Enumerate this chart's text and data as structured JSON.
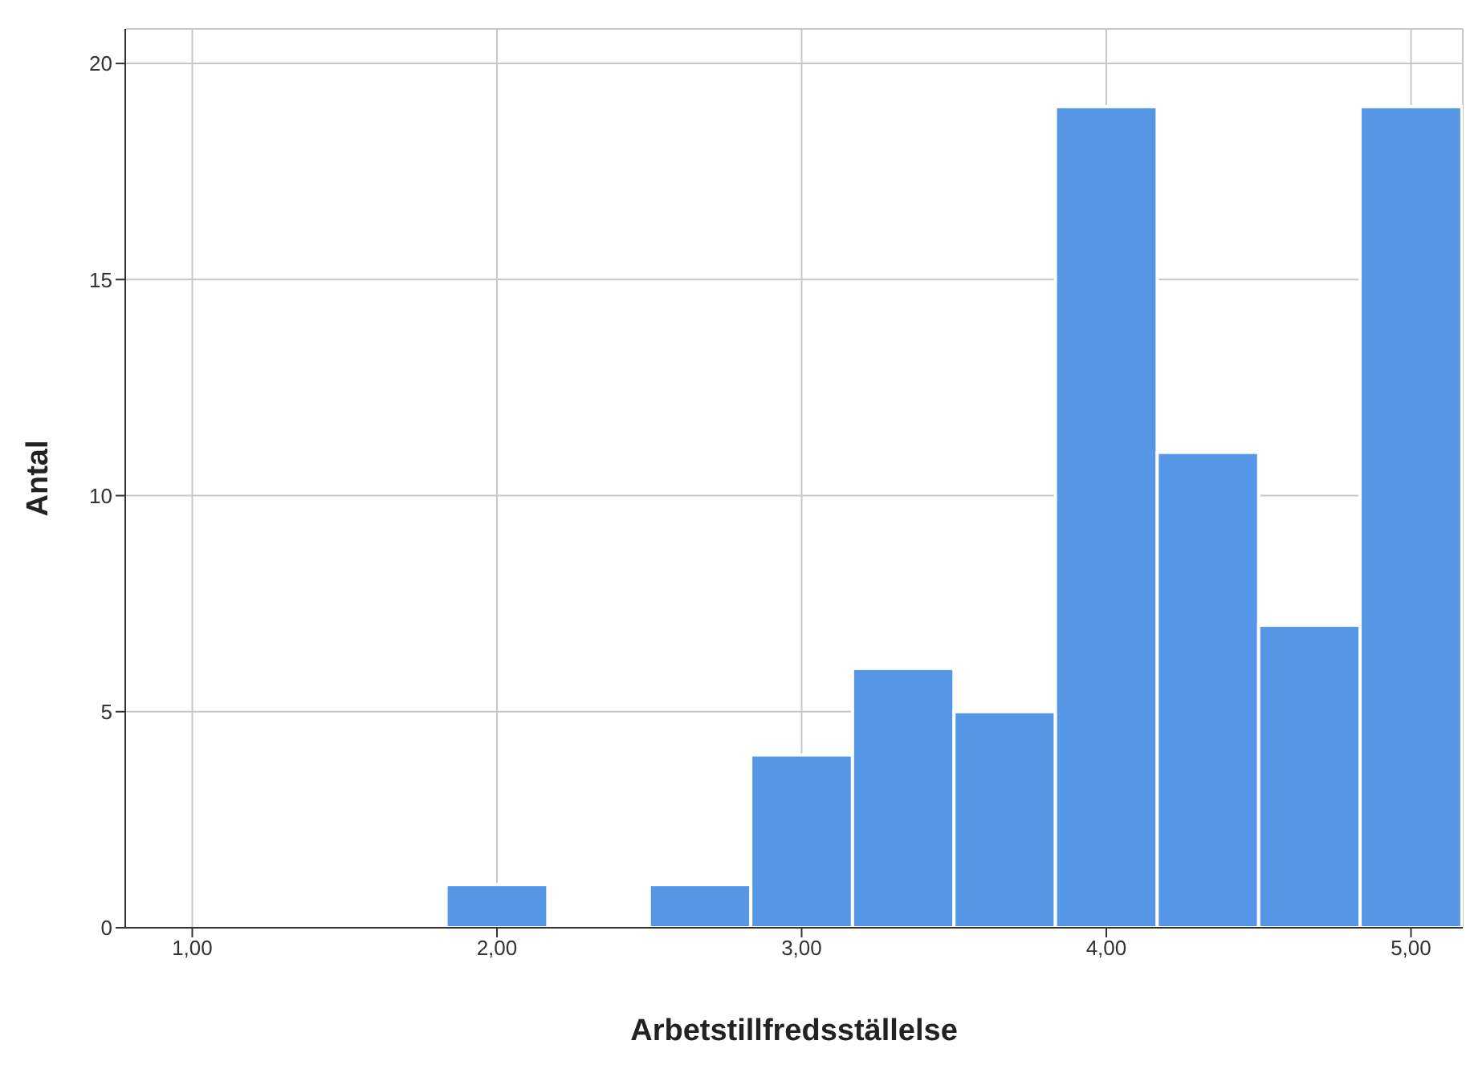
{
  "chart_data": {
    "type": "histogram",
    "xlabel": "Arbetstillfredsställelse",
    "ylabel": "Antal",
    "bins": [
      1.833,
      2.167,
      2.5,
      2.833,
      3.167,
      3.5,
      3.833,
      4.167,
      4.5,
      4.833,
      5.167
    ],
    "values": [
      1,
      0,
      1,
      4,
      6,
      5,
      19,
      11,
      7,
      19
    ],
    "color": "#5596e6",
    "xlim": [
      0.78,
      5.17
    ],
    "xticks": [
      {
        "value": 1,
        "label": "1,00"
      },
      {
        "value": 2,
        "label": "2,00"
      },
      {
        "value": 3,
        "label": "3,00"
      },
      {
        "value": 4,
        "label": "4,00"
      },
      {
        "value": 5,
        "label": "5,00"
      }
    ],
    "ylim": [
      0,
      20.8
    ],
    "yticks": [
      0,
      5,
      10,
      15,
      20
    ],
    "grid": true
  }
}
